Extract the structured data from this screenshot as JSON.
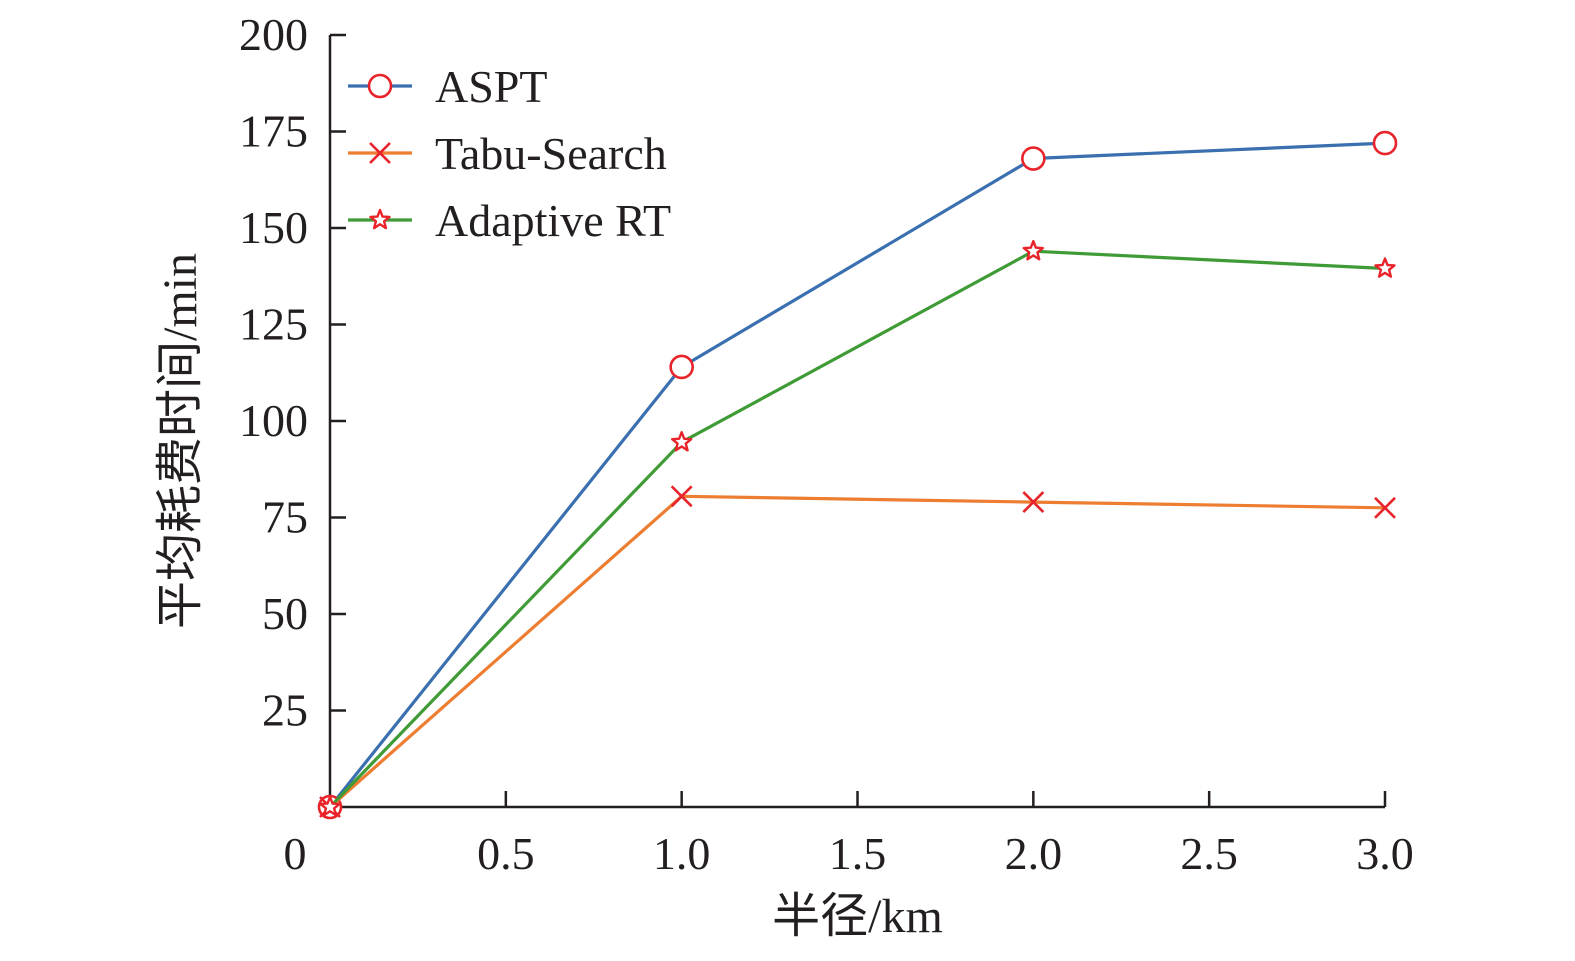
{
  "chart_data": {
    "type": "line",
    "title": "",
    "xlabel": "半径/km",
    "ylabel": "平均耗费时间/min",
    "x_ticks": [
      "0",
      "0.5",
      "1.0",
      "1.5",
      "2.0",
      "2.5",
      "3.0"
    ],
    "x_tick_values": [
      0,
      0.5,
      1.0,
      1.5,
      2.0,
      2.5,
      3.0
    ],
    "y_ticks": [
      "25",
      "50",
      "75",
      "100",
      "125",
      "150",
      "175",
      "200"
    ],
    "y_tick_values": [
      25,
      50,
      75,
      100,
      125,
      150,
      175,
      200
    ],
    "xlim": [
      0,
      3.0
    ],
    "ylim": [
      0,
      200
    ],
    "grid": false,
    "legend_position": "top-left",
    "series": [
      {
        "name": "ASPT",
        "x": [
          0.0,
          1.0,
          2.0,
          3.0
        ],
        "values": [
          0,
          114,
          168,
          172
        ],
        "color": "#3a6fb0",
        "marker": "circle"
      },
      {
        "name": "Tabu-Search",
        "x": [
          0.0,
          1.0,
          2.0,
          3.0
        ],
        "values": [
          0,
          80.5,
          79,
          77.5
        ],
        "color": "#ed7d31",
        "marker": "x"
      },
      {
        "name": "Adaptive RT",
        "x": [
          0.0,
          1.0,
          2.0,
          3.0
        ],
        "values": [
          0,
          94.5,
          144,
          139.5
        ],
        "color": "#3f9b35",
        "marker": "star"
      }
    ],
    "marker_color": "#e8232a"
  }
}
